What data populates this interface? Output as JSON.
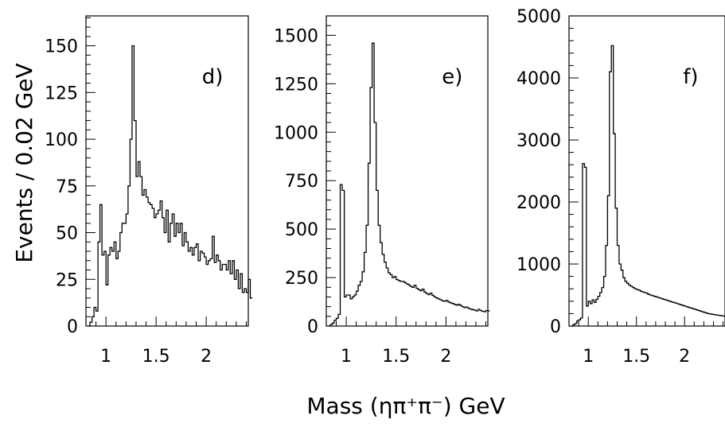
{
  "figure": {
    "ylabel": "Events / 0.02 GeV",
    "xlabel": "Mass (ηπ⁺π⁻) GeV"
  },
  "chart_data": [
    {
      "type": "histogram",
      "panel_label": "d)",
      "bin_width": 0.02,
      "x_start": 0.82,
      "xlim": [
        0.8,
        2.42
      ],
      "ylim": [
        0,
        166
      ],
      "xticks": [
        1,
        1.5,
        2
      ],
      "xtick_labels": [
        "1",
        "1.5",
        "2"
      ],
      "yticks": [
        0,
        25,
        50,
        75,
        100,
        125,
        150
      ],
      "ytick_labels": [
        "0",
        "25",
        "50",
        "75",
        "100",
        "125",
        "150"
      ],
      "values": [
        0,
        2,
        5,
        10,
        8,
        45,
        65,
        38,
        40,
        22,
        38,
        42,
        40,
        45,
        36,
        40,
        50,
        55,
        55,
        60,
        75,
        100,
        150,
        110,
        80,
        88,
        80,
        70,
        73,
        69,
        66,
        65,
        63,
        58,
        60,
        62,
        67,
        58,
        50,
        62,
        45,
        55,
        60,
        48,
        55,
        50,
        55,
        43,
        50,
        45,
        40,
        42,
        38,
        42,
        44,
        35,
        40,
        39,
        37,
        33,
        35,
        36,
        48,
        34,
        38,
        35,
        30,
        33,
        33,
        30,
        35,
        28,
        35,
        25,
        30,
        20,
        28,
        18,
        20,
        18,
        25,
        15
      ]
    },
    {
      "type": "histogram",
      "panel_label": "e)",
      "bin_width": 0.02,
      "x_start": 0.82,
      "xlim": [
        0.8,
        2.42
      ],
      "ylim": [
        0,
        1600
      ],
      "xticks": [
        1,
        1.5,
        2
      ],
      "xtick_labels": [
        "1",
        "1.5",
        "2"
      ],
      "yticks": [
        0,
        250,
        500,
        750,
        1000,
        1250,
        1500
      ],
      "ytick_labels": [
        "0",
        "250",
        "500",
        "750",
        "1000",
        "1250",
        "1500"
      ],
      "values": [
        0,
        8,
        15,
        30,
        40,
        60,
        730,
        700,
        150,
        160,
        160,
        140,
        150,
        160,
        180,
        210,
        230,
        280,
        380,
        520,
        840,
        1230,
        1460,
        1050,
        700,
        520,
        430,
        370,
        330,
        300,
        275,
        265,
        250,
        255,
        240,
        235,
        230,
        230,
        225,
        218,
        212,
        205,
        200,
        210,
        195,
        188,
        182,
        190,
        175,
        168,
        162,
        170,
        158,
        150,
        145,
        140,
        135,
        130,
        128,
        132,
        124,
        120,
        116,
        112,
        108,
        112,
        106,
        100,
        95,
        98,
        92,
        88,
        85,
        82,
        78,
        86,
        80,
        76,
        74,
        80,
        78
      ]
    },
    {
      "type": "histogram",
      "panel_label": "f)",
      "bin_width": 0.02,
      "x_start": 0.82,
      "xlim": [
        0.8,
        2.42
      ],
      "ylim": [
        0,
        5000
      ],
      "xticks": [
        1,
        1.5,
        2
      ],
      "xtick_labels": [
        "1",
        "1.5",
        "2"
      ],
      "yticks": [
        0,
        1000,
        2000,
        3000,
        4000,
        5000
      ],
      "ytick_labels": [
        "0",
        "1000",
        "2000",
        "3000",
        "4000",
        "5000"
      ],
      "values": [
        0,
        20,
        40,
        80,
        100,
        130,
        2620,
        2560,
        320,
        400,
        360,
        420,
        380,
        430,
        480,
        540,
        620,
        800,
        1300,
        2100,
        4100,
        4520,
        3100,
        1900,
        1300,
        1000,
        900,
        780,
        720,
        690,
        660,
        640,
        620,
        600,
        590,
        580,
        560,
        550,
        540,
        530,
        510,
        500,
        490,
        480,
        470,
        460,
        450,
        440,
        430,
        420,
        410,
        400,
        390,
        380,
        370,
        360,
        350,
        340,
        330,
        320,
        310,
        300,
        290,
        280,
        270,
        260,
        250,
        240,
        230,
        220,
        210,
        200,
        195,
        190,
        185,
        180,
        175,
        170,
        165,
        160,
        155
      ]
    }
  ]
}
